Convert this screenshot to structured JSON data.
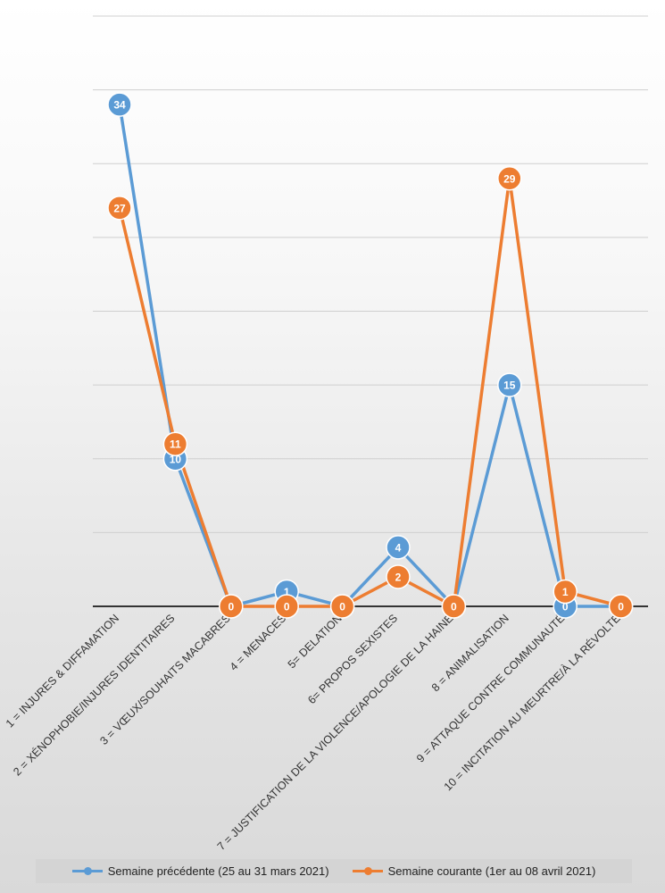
{
  "chart_data": {
    "type": "line",
    "categories": [
      "1 = INJURES & DIFFAMATION",
      "2 = XÉNOPHOBIE/INJURES IDENTITAIRES",
      "3 = VŒUX/SOUHAITS MACABRES",
      "4 = MENACES",
      "5= DELATION",
      "6= PROPOS SEXISTES",
      "7 = JUSTIFICATION DE LA VIOLENCE/APOLOGIE DE LA HAINE",
      "8 = ANIMALISATION",
      "9 = ATTAQUE CONTRE COMMUNAUTÉ",
      "10 = INCITATION AU MEURTRE/À LA RÉVOLTE"
    ],
    "series": [
      {
        "name": "Semaine précédente (25 au 31 mars 2021)",
        "color": "#5b9bd5",
        "values": [
          34,
          10,
          0,
          1,
          0,
          4,
          0,
          15,
          0,
          0
        ]
      },
      {
        "name": "Semaine courante (1er au 08 avril 2021)",
        "color": "#ed7d31",
        "values": [
          27,
          11,
          0,
          0,
          0,
          2,
          0,
          29,
          1,
          0
        ]
      }
    ],
    "ylim": [
      0,
      40
    ],
    "grid": true,
    "legend_position": "bottom"
  }
}
